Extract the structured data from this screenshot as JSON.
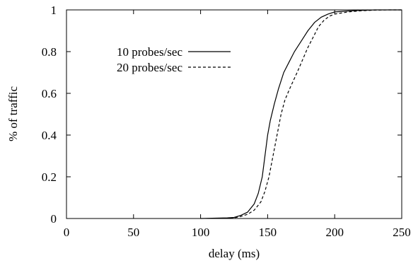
{
  "chart_data": {
    "type": "line",
    "title": "",
    "xlabel": "delay (ms)",
    "ylabel": "% of traffic",
    "xlim": [
      0,
      250
    ],
    "ylim": [
      0,
      1
    ],
    "xticks": [
      "0",
      "50",
      "100",
      "150",
      "200",
      "250"
    ],
    "yticks": [
      "0",
      "0.2",
      "0.4",
      "0.6",
      "0.8",
      "1"
    ],
    "grid": false,
    "legend_position": "top-left",
    "series": [
      {
        "name": "10 probes/sec",
        "style": "solid",
        "color": "#000000",
        "points": [
          [
            100,
            0
          ],
          [
            120,
            0.003
          ],
          [
            125,
            0.005
          ],
          [
            130,
            0.015
          ],
          [
            135,
            0.03
          ],
          [
            140,
            0.07
          ],
          [
            143,
            0.12
          ],
          [
            146,
            0.2
          ],
          [
            148,
            0.3
          ],
          [
            150,
            0.4
          ],
          [
            152,
            0.47
          ],
          [
            155,
            0.55
          ],
          [
            158,
            0.62
          ],
          [
            162,
            0.7
          ],
          [
            166,
            0.75
          ],
          [
            170,
            0.8
          ],
          [
            175,
            0.85
          ],
          [
            180,
            0.9
          ],
          [
            185,
            0.94
          ],
          [
            190,
            0.965
          ],
          [
            195,
            0.98
          ],
          [
            200,
            0.99
          ],
          [
            210,
            0.995
          ],
          [
            220,
            0.998
          ],
          [
            230,
            1.0
          ],
          [
            250,
            1.0
          ]
        ]
      },
      {
        "name": "20 probes/sec",
        "style": "dashed",
        "color": "#000000",
        "points": [
          [
            122,
            0
          ],
          [
            125,
            0.003
          ],
          [
            130,
            0.01
          ],
          [
            135,
            0.02
          ],
          [
            140,
            0.04
          ],
          [
            145,
            0.08
          ],
          [
            148,
            0.13
          ],
          [
            151,
            0.2
          ],
          [
            154,
            0.3
          ],
          [
            157,
            0.4
          ],
          [
            160,
            0.5
          ],
          [
            163,
            0.57
          ],
          [
            167,
            0.63
          ],
          [
            172,
            0.7
          ],
          [
            176,
            0.76
          ],
          [
            180,
            0.82
          ],
          [
            184,
            0.87
          ],
          [
            188,
            0.92
          ],
          [
            192,
            0.95
          ],
          [
            196,
            0.97
          ],
          [
            200,
            0.98
          ],
          [
            210,
            0.99
          ],
          [
            220,
            0.996
          ],
          [
            230,
            0.999
          ],
          [
            240,
            1.0
          ],
          [
            250,
            1.0
          ]
        ]
      }
    ]
  }
}
